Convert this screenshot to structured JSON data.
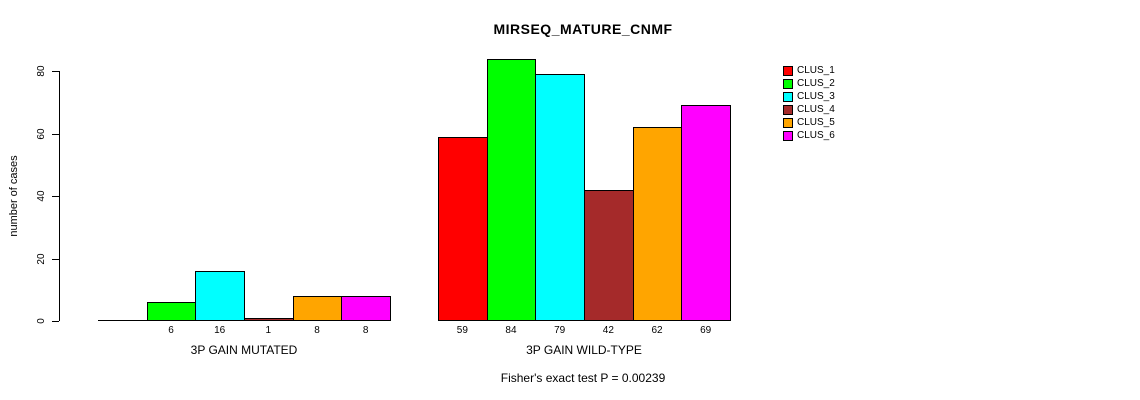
{
  "title": "MIRSEQ_MATURE_CNMF",
  "footer": "Fisher's exact test P = 0.00239",
  "chart_data": {
    "type": "bar",
    "title": "MIRSEQ_MATURE_CNMF",
    "xlabel": "",
    "ylabel": "number of cases",
    "ylim": [
      0,
      80
    ],
    "yticks": [
      0,
      20,
      40,
      60,
      80
    ],
    "grid": false,
    "legend_position": "right",
    "categories": [
      "3P GAIN MUTATED",
      "3P GAIN WILD-TYPE"
    ],
    "series": [
      {
        "name": "CLUS_1",
        "color": "#FF0000",
        "values": [
          0,
          59
        ]
      },
      {
        "name": "CLUS_2",
        "color": "#00FF00",
        "values": [
          6,
          84
        ]
      },
      {
        "name": "CLUS_3",
        "color": "#00FFFF",
        "values": [
          16,
          79
        ]
      },
      {
        "name": "CLUS_4",
        "color": "#A52A2A",
        "values": [
          1,
          42
        ]
      },
      {
        "name": "CLUS_5",
        "color": "#FFA500",
        "values": [
          8,
          62
        ]
      },
      {
        "name": "CLUS_6",
        "color": "#FF00FF",
        "values": [
          8,
          69
        ]
      }
    ],
    "bar_labels": [
      [
        "",
        "6",
        "16",
        "1",
        "8",
        "8"
      ],
      [
        "59",
        "84",
        "79",
        "42",
        "62",
        "69"
      ]
    ],
    "annotation": "Fisher's exact test P = 0.00239",
    "bar_border_color": "#000000",
    "text_color": "#000000"
  }
}
